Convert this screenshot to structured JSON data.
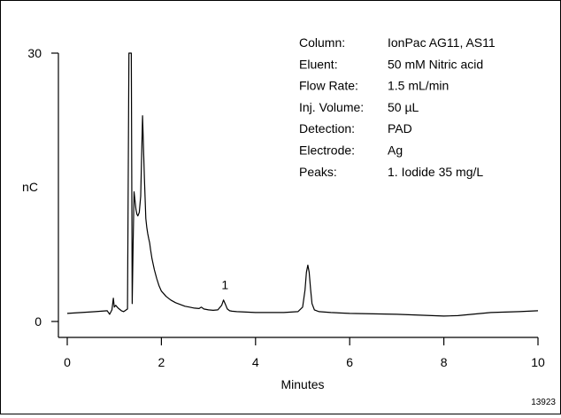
{
  "chart_data": {
    "type": "line",
    "xlabel": "Minutes",
    "ylabel": "nC",
    "xlim": [
      0,
      10
    ],
    "ylim": [
      0,
      30
    ],
    "x_ticks": [
      "0",
      "2",
      "4",
      "6",
      "8",
      "10"
    ],
    "y_ticks": [
      "0",
      "30"
    ],
    "grid": false,
    "series": [
      {
        "x": [
          0.0,
          0.3,
          0.6,
          0.85,
          0.9,
          0.95,
          0.98,
          1.0,
          1.03,
          1.08,
          1.15,
          1.2,
          1.28,
          1.31,
          1.33,
          1.36,
          1.38,
          1.4,
          1.42,
          1.44,
          1.46,
          1.48,
          1.5,
          1.53,
          1.56,
          1.6,
          1.64,
          1.67,
          1.69,
          1.71,
          1.73,
          1.75,
          1.77,
          1.8,
          1.85,
          1.9,
          1.95,
          2.0,
          2.1,
          2.2,
          2.3,
          2.4,
          2.5,
          2.6,
          2.7,
          2.8,
          2.85,
          2.9,
          3.0,
          3.1,
          3.2,
          3.28,
          3.32,
          3.36,
          3.4,
          3.45,
          3.5,
          3.6,
          3.8,
          4.0,
          4.3,
          4.6,
          4.9,
          5.0,
          5.05,
          5.08,
          5.11,
          5.14,
          5.17,
          5.2,
          5.25,
          5.35,
          5.6,
          6.0,
          6.5,
          7.0,
          7.5,
          8.0,
          8.3,
          8.6,
          9.0,
          9.3,
          9.6,
          10.0
        ],
        "values": [
          0.9,
          1.0,
          1.1,
          1.2,
          0.8,
          1.3,
          2.6,
          1.6,
          1.8,
          1.5,
          1.2,
          1.1,
          1.4,
          30,
          30,
          30,
          2.0,
          9.0,
          14.5,
          13.5,
          12.5,
          12.0,
          11.8,
          12.2,
          14.0,
          23.0,
          16.0,
          11.5,
          10.5,
          9.8,
          9.3,
          8.8,
          8.0,
          7.0,
          5.8,
          4.8,
          4.0,
          3.4,
          2.8,
          2.4,
          2.1,
          1.9,
          1.7,
          1.6,
          1.5,
          1.45,
          1.6,
          1.4,
          1.3,
          1.25,
          1.3,
          1.8,
          2.4,
          1.9,
          1.4,
          1.2,
          1.15,
          1.1,
          1.05,
          1.0,
          1.0,
          1.0,
          1.1,
          1.6,
          3.5,
          5.5,
          6.3,
          5.5,
          3.6,
          2.0,
          1.3,
          1.1,
          1.0,
          0.9,
          0.85,
          0.8,
          0.7,
          0.6,
          0.65,
          0.8,
          1.0,
          1.05,
          1.1,
          1.2
        ]
      }
    ],
    "annotations": [
      {
        "text": "1",
        "x": 3.35,
        "y": 3.6
      }
    ]
  },
  "info": {
    "rows": [
      {
        "label": "Column:",
        "value": "IonPac AG11, AS11"
      },
      {
        "label": "Eluent:",
        "value": "50 mM Nitric acid"
      },
      {
        "label": "Flow Rate:",
        "value": "1.5 mL/min"
      },
      {
        "label": "Inj. Volume:",
        "value": "50 µL"
      },
      {
        "label": "Detection:",
        "value": "PAD"
      },
      {
        "label": "Electrode:",
        "value": "Ag"
      },
      {
        "label": "Peaks:",
        "value": "1. Iodide   35 mg/L"
      }
    ]
  },
  "figure_id": "13923"
}
